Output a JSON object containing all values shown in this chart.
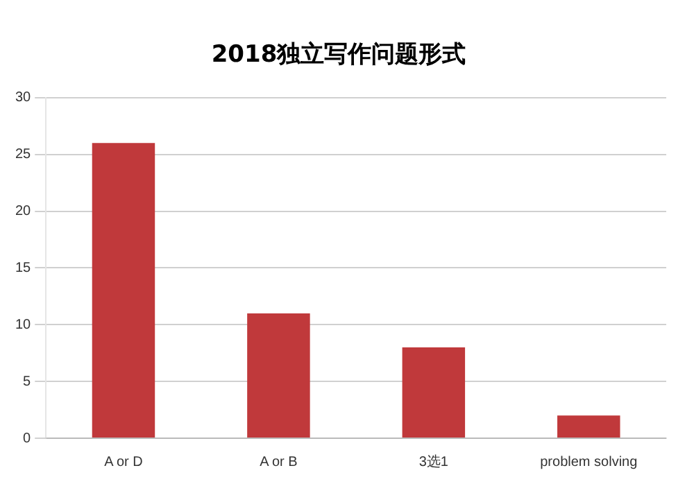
{
  "chart_data": {
    "type": "bar",
    "title": "2018独立写作问题形式",
    "categories": [
      "A or D",
      "A or B",
      "3选1",
      "problem solving"
    ],
    "values": [
      26,
      11,
      8,
      2
    ],
    "color": "#c0393b",
    "ylim": [
      0,
      30
    ],
    "yticks": [
      0,
      5,
      10,
      15,
      20,
      25,
      30
    ],
    "grid": "y"
  }
}
